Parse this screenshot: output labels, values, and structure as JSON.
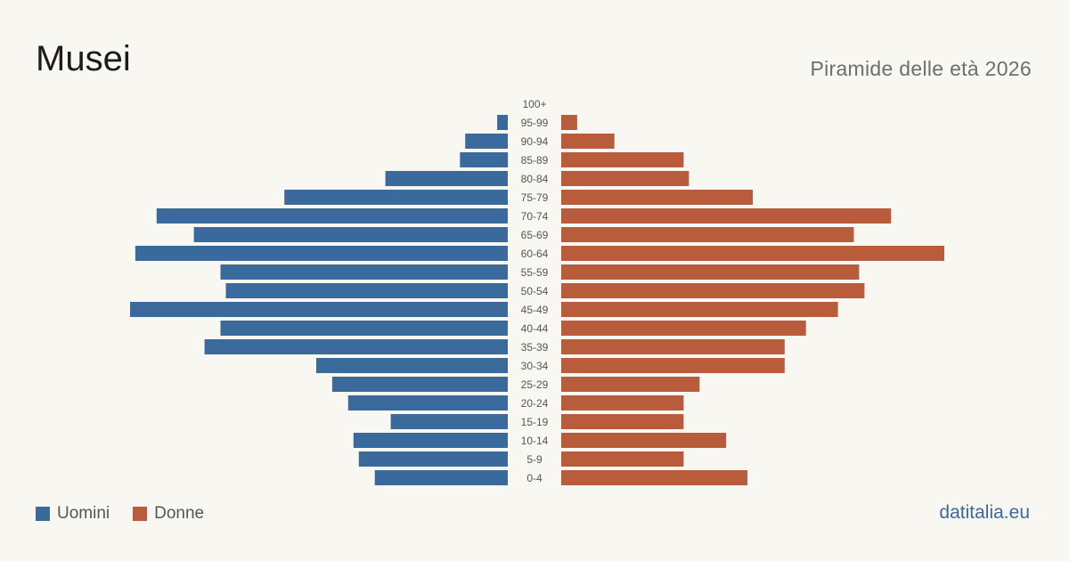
{
  "page": {
    "title": "Musei",
    "subtitle": "Piramide delle età 2026",
    "source": "datitalia.eu"
  },
  "legend": {
    "men_label": "Uomini",
    "women_label": "Donne"
  },
  "colors": {
    "men": "#3a6a9b",
    "women": "#b85c3c",
    "background": "#f9f7f2",
    "age_label": "#555555"
  },
  "chart_data": {
    "type": "bar",
    "orientation": "horizontal-pyramid",
    "categories": [
      "100+",
      "95-99",
      "90-94",
      "85-89",
      "80-84",
      "75-79",
      "70-74",
      "65-69",
      "60-64",
      "55-59",
      "50-54",
      "45-49",
      "40-44",
      "35-39",
      "30-34",
      "25-29",
      "20-24",
      "15-19",
      "10-14",
      "5-9",
      "0-4"
    ],
    "series": [
      {
        "name": "Uomini",
        "side": "left",
        "values": [
          0,
          2,
          8,
          9,
          23,
          42,
          66,
          59,
          70,
          54,
          53,
          71,
          54,
          57,
          36,
          33,
          30,
          22,
          29,
          28,
          25
        ]
      },
      {
        "name": "Donne",
        "side": "right",
        "values": [
          0,
          3,
          10,
          23,
          24,
          36,
          62,
          55,
          72,
          56,
          57,
          52,
          46,
          42,
          42,
          26,
          23,
          23,
          31,
          23,
          35
        ]
      }
    ],
    "legend_position": "bottom-left",
    "grid": false
  }
}
